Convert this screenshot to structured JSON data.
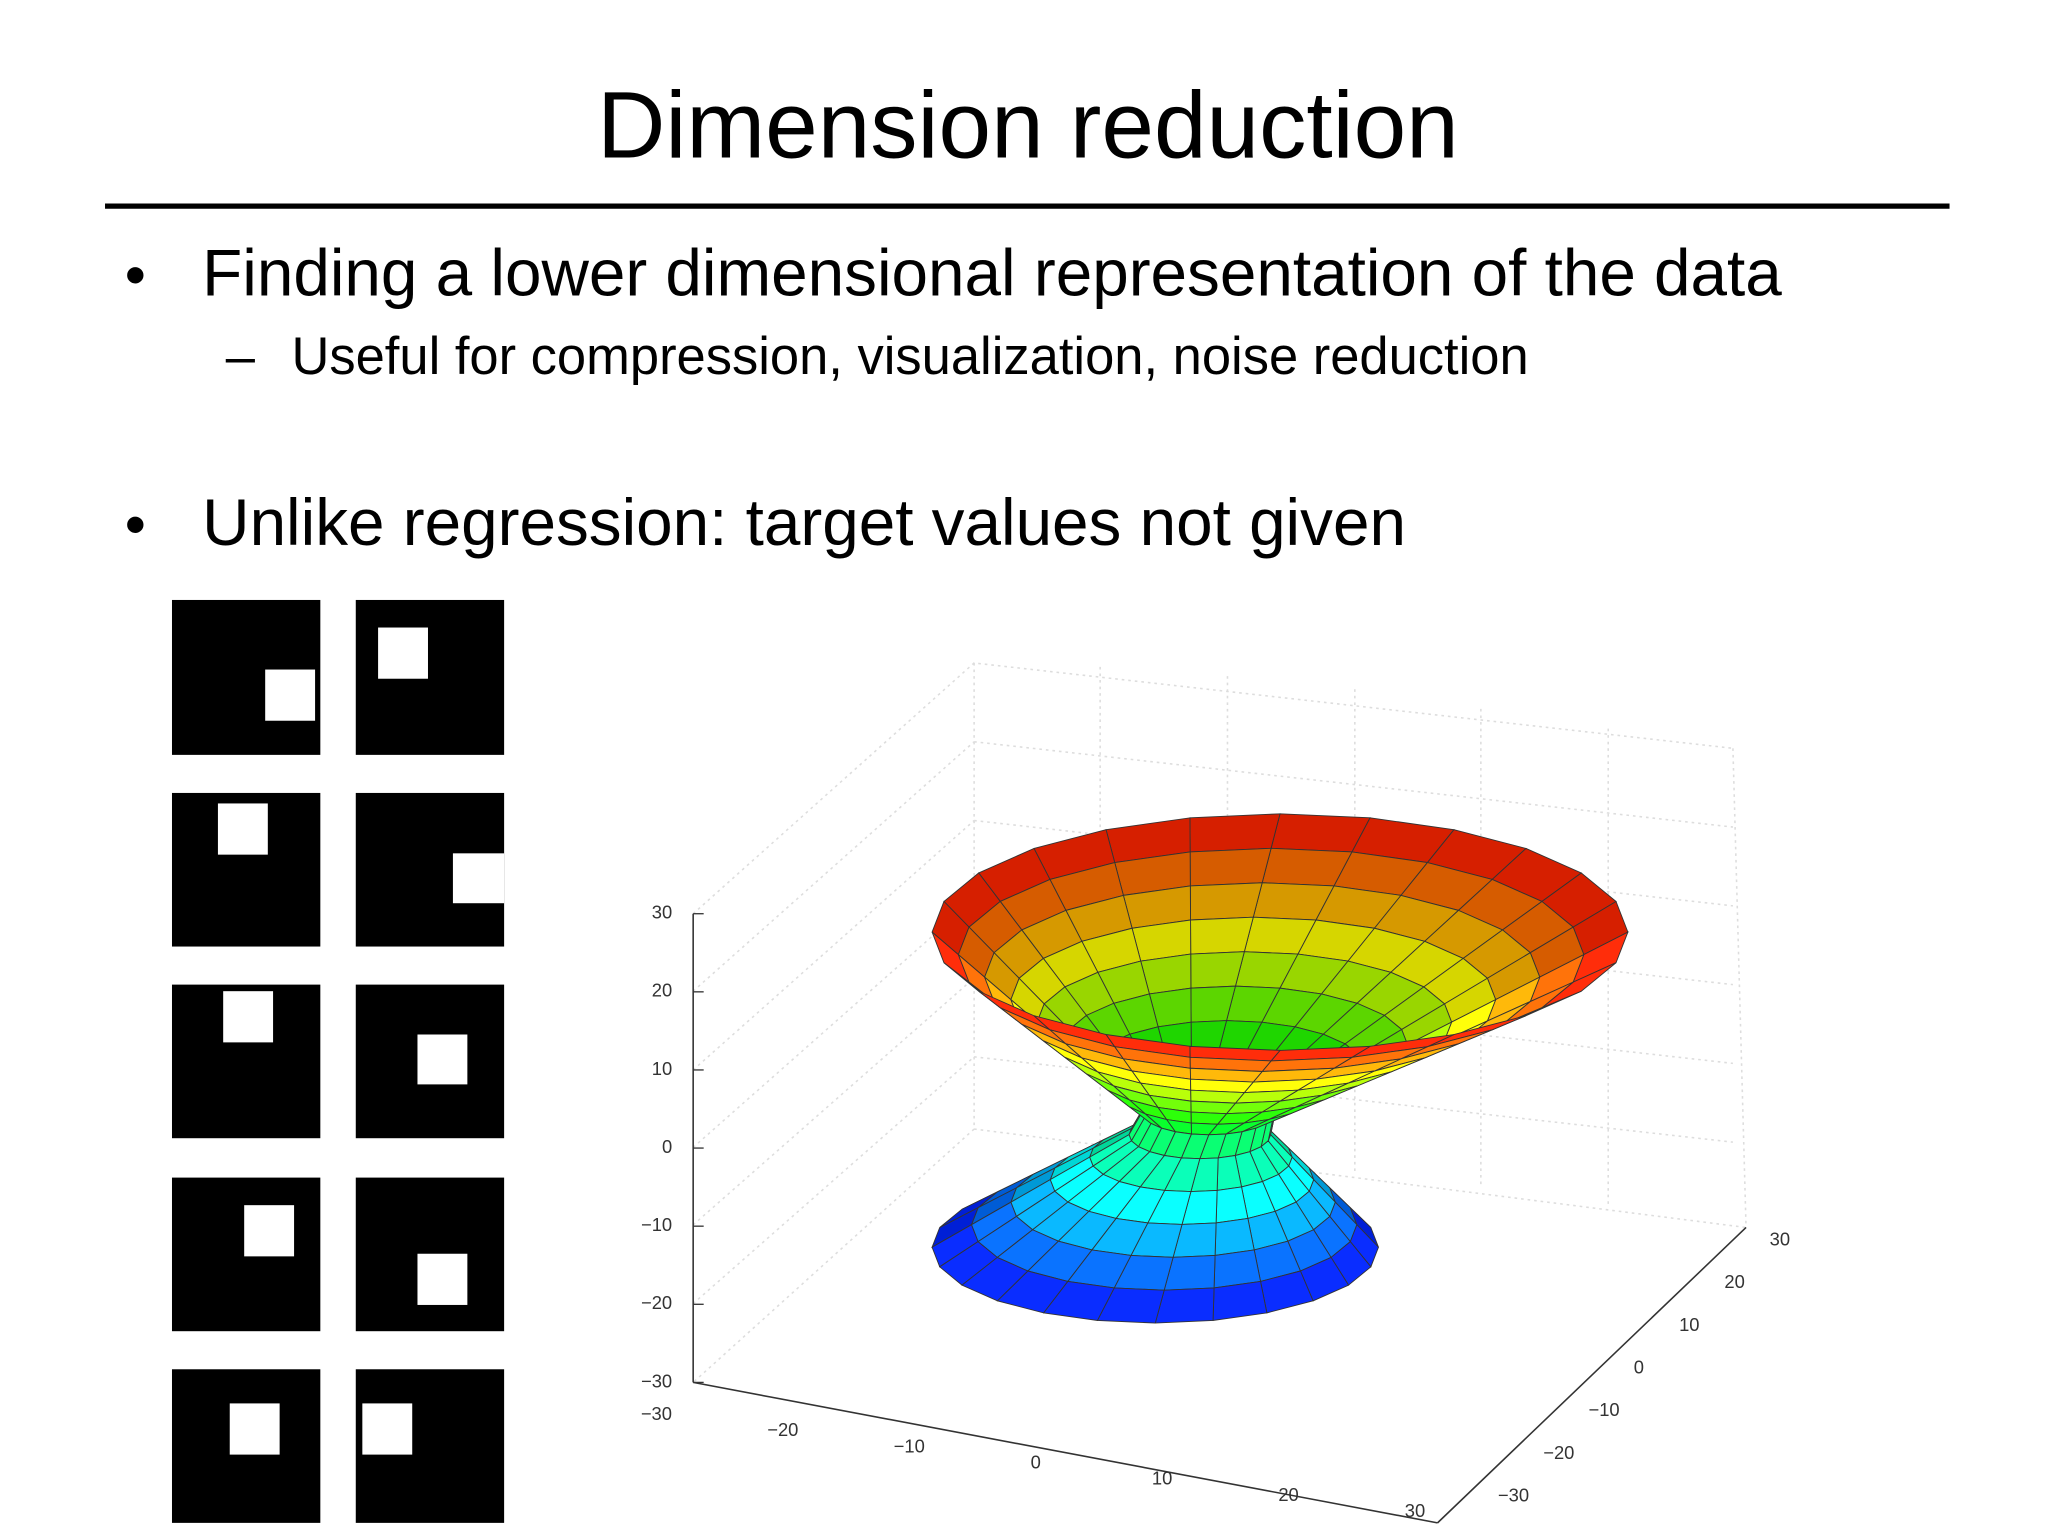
{
  "header": {
    "title": "Dimension reduction"
  },
  "bullets": [
    {
      "text": "Finding a lower dimensional representation of the data",
      "sub": [
        "Useful for compression, visualization, noise reduction"
      ]
    },
    {
      "text": "Unlike regression: target values not given"
    }
  ],
  "figure": {
    "z_ticks": [
      "30",
      "20",
      "10",
      "0",
      "−10",
      "−20",
      "−30"
    ],
    "x_ticks": [
      "−30",
      "−20",
      "−10",
      "0",
      "10",
      "20",
      "30"
    ],
    "y_ticks": [
      "30",
      "20",
      "10",
      "0",
      "−10",
      "−20",
      "−30"
    ]
  }
}
